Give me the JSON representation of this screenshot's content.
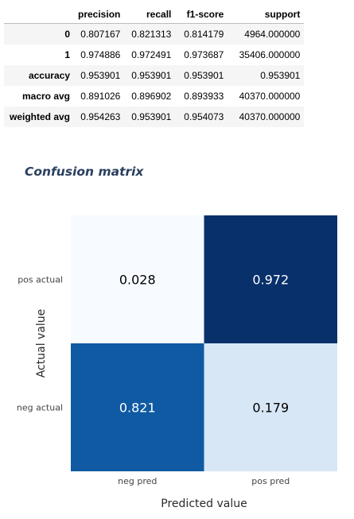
{
  "report": {
    "columns": [
      "",
      "precision",
      "recall",
      "f1-score",
      "support"
    ],
    "rows": [
      {
        "label": "0",
        "values": [
          "0.807167",
          "0.821313",
          "0.814179",
          "4964.000000"
        ]
      },
      {
        "label": "1",
        "values": [
          "0.974886",
          "0.972491",
          "0.973687",
          "35406.000000"
        ]
      },
      {
        "label": "accuracy",
        "values": [
          "0.953901",
          "0.953901",
          "0.953901",
          "0.953901"
        ]
      },
      {
        "label": "macro avg",
        "values": [
          "0.891026",
          "0.896902",
          "0.893933",
          "40370.000000"
        ]
      },
      {
        "label": "weighted avg",
        "values": [
          "0.954263",
          "0.953901",
          "0.954073",
          "40370.000000"
        ]
      }
    ]
  },
  "heading": "Confusion matrix",
  "chart_data": {
    "type": "heatmap",
    "title": "",
    "xlabel": "Predicted value",
    "ylabel": "Actual value",
    "x_categories": [
      "neg pred",
      "pos pred"
    ],
    "y_categories": [
      "pos actual",
      "neg actual"
    ],
    "z": [
      [
        0.028,
        0.972
      ],
      [
        0.821,
        0.179
      ]
    ],
    "text": [
      [
        "0.028",
        "0.972"
      ],
      [
        "0.821",
        "0.179"
      ]
    ],
    "colorscale": "Blues",
    "colors": {
      "low": "#f7fbff",
      "high": "#08306b",
      "text_dark": "#000000",
      "text_light": "#ffffff"
    }
  }
}
